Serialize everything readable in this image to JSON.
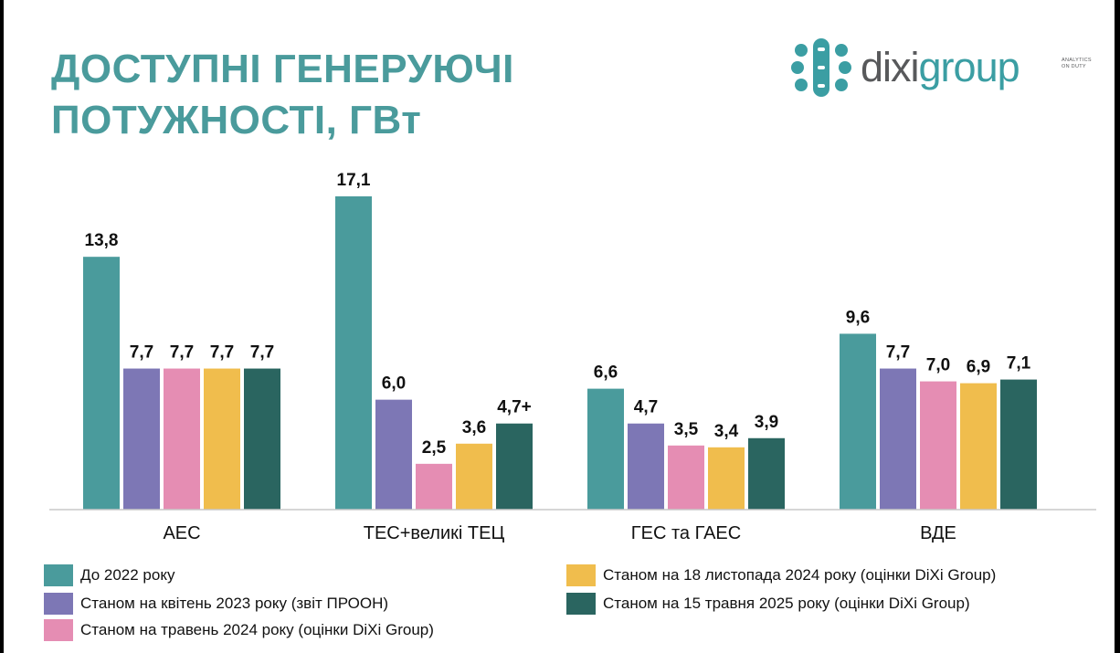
{
  "title": {
    "line1": "ДОСТУПНІ ГЕНЕРУЮЧІ",
    "line2": "ПОТУЖНОСТІ, ГВт"
  },
  "logo": {
    "name_part1": "dixi",
    "name_part2": "group",
    "tagline_line1": "ANALYTICS",
    "tagline_line2": "ON DUTY"
  },
  "colors": {
    "title": "#4a9b9c",
    "series": [
      "#4a9b9c",
      "#7d77b5",
      "#e58db3",
      "#f0bd4d",
      "#2a6560"
    ]
  },
  "chart_data": {
    "type": "bar",
    "categories": [
      "АЕС",
      "ТЕС+великі ТЕЦ",
      "ГЕС та ГАЕС",
      "ВДЕ"
    ],
    "series": [
      {
        "name": "До 2022 року",
        "values": [
          13.8,
          17.1,
          6.6,
          9.6
        ],
        "labels": [
          "13,8",
          "17,1",
          "6,6",
          "9,6"
        ]
      },
      {
        "name": "Станом на квітень 2023 року (звіт ПРООН)",
        "values": [
          7.7,
          6.0,
          4.7,
          7.7
        ],
        "labels": [
          "7,7",
          "6,0",
          "4,7",
          "7,7"
        ]
      },
      {
        "name": "Станом на травень 2024 року (оцінки DiXi Group)",
        "values": [
          7.7,
          2.5,
          3.5,
          7.0
        ],
        "labels": [
          "7,7",
          "2,5",
          "3,5",
          "7,0"
        ]
      },
      {
        "name": "Станом на 18 листопада 2024 року (оцінки DiXi Group)",
        "values": [
          7.7,
          3.6,
          3.4,
          6.9
        ],
        "labels": [
          "7,7",
          "3,6",
          "3,4",
          "6,9"
        ]
      },
      {
        "name": "Станом на 15 травня 2025 року (оцінки DiXi Group)",
        "values": [
          7.7,
          4.7,
          3.9,
          7.1
        ],
        "labels": [
          "7,7",
          "4,7+",
          "3,9",
          "7,1"
        ]
      }
    ],
    "ylim": [
      0,
      17.1
    ],
    "grid": false,
    "legend_position": "bottom"
  }
}
